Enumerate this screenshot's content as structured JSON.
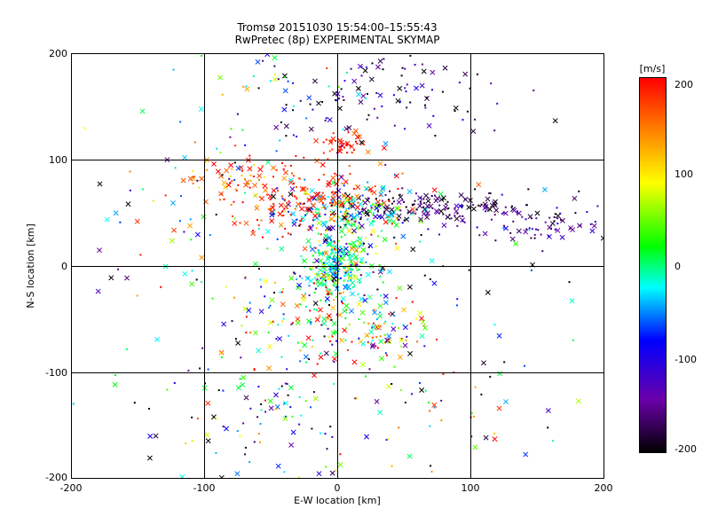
{
  "chart_data": {
    "type": "scatter",
    "title": "Tromsø 20151030 15:54:00–15:55:43",
    "subtitle": "RwPretec (8p) EXPERIMENTAL SKYMAP",
    "xlabel": "E-W location [km]",
    "ylabel": "N-S location [km]",
    "xlim": [
      -200,
      200
    ],
    "ylim": [
      -200,
      200
    ],
    "xticks": [
      "-200",
      "-100",
      "0",
      "100",
      "200"
    ],
    "yticks": [
      "-200",
      "-100",
      "0",
      "100",
      "200"
    ],
    "grid": true,
    "colorbar": {
      "label": "[m/s]",
      "range": [
        -200,
        200
      ],
      "ticks": [
        "200",
        "100",
        "0",
        "-100",
        "-200"
      ],
      "colormap": [
        "#000000",
        "#6a00a8",
        "#0000ff",
        "#00ffff",
        "#00ff00",
        "#ffff00",
        "#ff8000",
        "#ff0000"
      ]
    },
    "markers": {
      "cross": "×",
      "dot": "·"
    },
    "clusters": [
      {
        "x": 0,
        "y": 0,
        "sx": 12,
        "sy": 14,
        "n": 260,
        "v": -10,
        "dv": 50
      },
      {
        "x": 5,
        "y": 50,
        "sx": 30,
        "sy": 12,
        "n": 220,
        "v": -20,
        "dv": 90
      },
      {
        "x": 70,
        "y": 55,
        "sx": 45,
        "sy": 8,
        "n": 160,
        "v": -170,
        "dv": 30
      },
      {
        "x": 150,
        "y": 40,
        "sx": 25,
        "sy": 10,
        "n": 70,
        "v": -150,
        "dv": 40
      },
      {
        "x": -30,
        "y": 65,
        "sx": 40,
        "sy": 20,
        "n": 180,
        "v": 180,
        "dv": 30
      },
      {
        "x": -80,
        "y": 85,
        "sx": 20,
        "sy": 10,
        "n": 40,
        "v": 150,
        "dv": 60
      },
      {
        "x": 5,
        "y": 115,
        "sx": 8,
        "sy": 5,
        "n": 40,
        "v": 190,
        "dv": 20
      },
      {
        "x": 40,
        "y": 170,
        "sx": 45,
        "sy": 25,
        "n": 110,
        "v": -160,
        "dv": 50
      },
      {
        "x": -40,
        "y": 150,
        "sx": 35,
        "sy": 35,
        "n": 60,
        "v": -60,
        "dv": 130
      },
      {
        "x": -20,
        "y": -40,
        "sx": 30,
        "sy": 30,
        "n": 140,
        "v": 0,
        "dv": 140
      },
      {
        "x": 20,
        "y": -60,
        "sx": 25,
        "sy": 20,
        "n": 90,
        "v": 80,
        "dv": 110
      },
      {
        "x": -60,
        "y": -140,
        "sx": 45,
        "sy": 40,
        "n": 120,
        "v": -40,
        "dv": 130
      },
      {
        "x": -120,
        "y": 40,
        "sx": 40,
        "sy": 60,
        "n": 60,
        "v": -20,
        "dv": 130
      },
      {
        "x": 60,
        "y": -30,
        "sx": 50,
        "sy": 60,
        "n": 80,
        "v": -100,
        "dv": 110
      },
      {
        "x": 80,
        "y": -150,
        "sx": 50,
        "sy": 40,
        "n": 40,
        "v": 0,
        "dv": 150
      }
    ]
  }
}
